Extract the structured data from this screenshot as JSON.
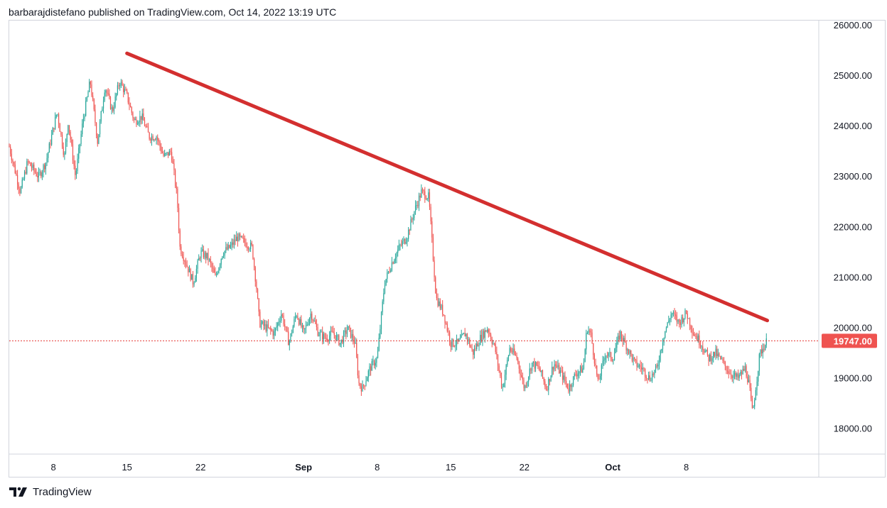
{
  "header": {
    "published_text": "barbarajdistefano published on TradingView.com, Oct 14, 2022 13:19 UTC"
  },
  "footer": {
    "brand": "TradingView",
    "logo_icon": "tradingview-logo-icon"
  },
  "colors": {
    "up_candle": "#26a69a",
    "down_candle": "#ef5350",
    "trendline": "#d32f2f",
    "last_price_line": "#e53935",
    "price_label_bg": "#ef5350",
    "grid_border": "#d1d4dc"
  },
  "chart_data": {
    "type": "candlestick",
    "title": "",
    "xlabel": "",
    "ylabel": "",
    "ylim": [
      17500,
      26100
    ],
    "y_ticks": [
      "26000.00",
      "25000.00",
      "24000.00",
      "23000.00",
      "22000.00",
      "21000.00",
      "20000.00",
      "19000.00",
      "18000.00"
    ],
    "x_ticks": [
      "8",
      "15",
      "22",
      "Sep",
      "8",
      "15",
      "22",
      "Oct",
      "8"
    ],
    "last_price": 19747,
    "last_price_label": "19747.00",
    "price_path": [
      [
        0,
        23600
      ],
      [
        1.5,
        22700
      ],
      [
        2.5,
        23300
      ],
      [
        4,
        23000
      ],
      [
        5,
        23300
      ],
      [
        6.5,
        24300
      ],
      [
        7.5,
        23400
      ],
      [
        8,
        24100
      ],
      [
        9,
        23000
      ],
      [
        10,
        24100
      ],
      [
        11,
        24900
      ],
      [
        12,
        23700
      ],
      [
        13,
        24800
      ],
      [
        14,
        24300
      ],
      [
        15,
        24900
      ],
      [
        16,
        24600
      ],
      [
        17,
        24100
      ],
      [
        18,
        24200
      ],
      [
        19,
        23800
      ],
      [
        20,
        23800
      ],
      [
        21,
        23400
      ],
      [
        22,
        23500
      ],
      [
        22.8,
        22600
      ],
      [
        23.2,
        21600
      ],
      [
        24,
        21300
      ],
      [
        25,
        20900
      ],
      [
        26,
        21500
      ],
      [
        27,
        21400
      ],
      [
        28,
        21000
      ],
      [
        29,
        21500
      ],
      [
        30,
        21600
      ],
      [
        31,
        21800
      ],
      [
        32,
        21700
      ],
      [
        33,
        21600
      ],
      [
        33.6,
        20800
      ],
      [
        34,
        20100
      ],
      [
        35,
        20000
      ],
      [
        36,
        19900
      ],
      [
        37,
        20300
      ],
      [
        38,
        19700
      ],
      [
        39,
        20300
      ],
      [
        40,
        19900
      ],
      [
        41,
        20300
      ],
      [
        42,
        19900
      ],
      [
        43,
        19800
      ],
      [
        44,
        19900
      ],
      [
        45,
        19700
      ],
      [
        46,
        20000
      ],
      [
        47,
        19700
      ],
      [
        47.5,
        18900
      ],
      [
        48,
        18800
      ],
      [
        49,
        19200
      ],
      [
        50,
        19400
      ],
      [
        51,
        20900
      ],
      [
        52,
        21300
      ],
      [
        53,
        21600
      ],
      [
        54,
        21800
      ],
      [
        55,
        22300
      ],
      [
        56,
        22700
      ],
      [
        57,
        22600
      ],
      [
        57.5,
        21600
      ],
      [
        58,
        20600
      ],
      [
        59,
        20300
      ],
      [
        60,
        19700
      ],
      [
        61,
        19700
      ],
      [
        62,
        19900
      ],
      [
        63,
        19500
      ],
      [
        64,
        19800
      ],
      [
        65,
        20000
      ],
      [
        66,
        19600
      ],
      [
        67,
        18800
      ],
      [
        68,
        19600
      ],
      [
        69,
        19400
      ],
      [
        70,
        18800
      ],
      [
        71,
        19300
      ],
      [
        72,
        19200
      ],
      [
        73,
        18800
      ],
      [
        74,
        19300
      ],
      [
        75,
        19100
      ],
      [
        76,
        18800
      ],
      [
        77,
        19100
      ],
      [
        78,
        19200
      ],
      [
        78.5,
        20000
      ],
      [
        79,
        19900
      ],
      [
        80,
        18900
      ],
      [
        81,
        19500
      ],
      [
        82,
        19400
      ],
      [
        83,
        19900
      ],
      [
        84,
        19600
      ],
      [
        85,
        19300
      ],
      [
        86,
        19200
      ],
      [
        87,
        19000
      ],
      [
        88,
        19200
      ],
      [
        89,
        19900
      ],
      [
        90,
        20300
      ],
      [
        91,
        20100
      ],
      [
        92,
        20300
      ],
      [
        93,
        19900
      ],
      [
        94,
        19700
      ],
      [
        95,
        19400
      ],
      [
        96,
        19500
      ],
      [
        97,
        19300
      ],
      [
        98,
        19100
      ],
      [
        99,
        19000
      ],
      [
        100,
        19200
      ],
      [
        100.5,
        18900
      ],
      [
        101,
        18300
      ],
      [
        102,
        19500
      ],
      [
        103,
        19750
      ]
    ],
    "trendline": {
      "start": {
        "day": 16,
        "price": 25450
      },
      "end": {
        "day": 103,
        "price": 20150
      }
    }
  }
}
